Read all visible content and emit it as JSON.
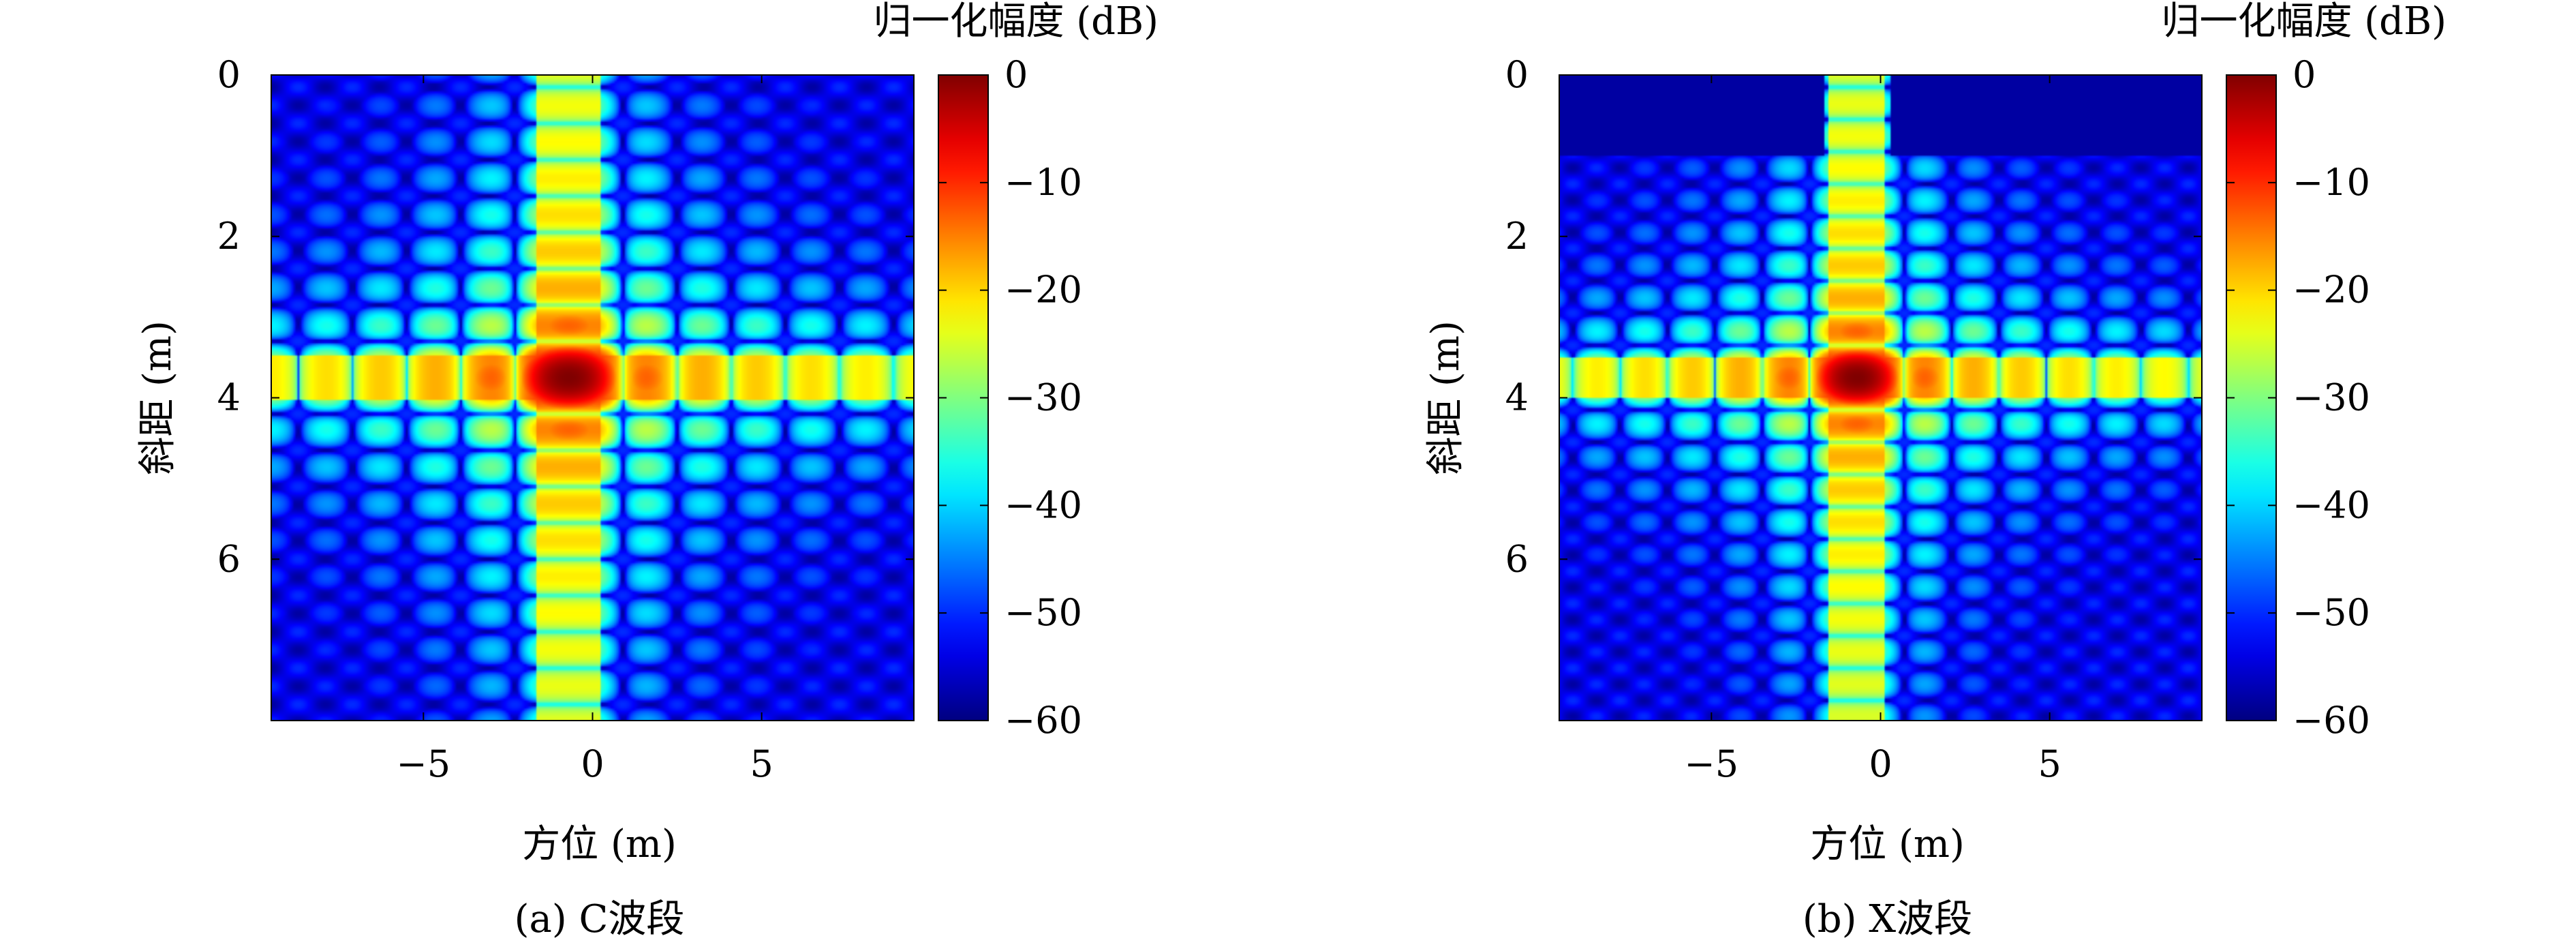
{
  "chart_data": [
    {
      "type": "heatmap",
      "panel_caption": "(a) C波段",
      "xlabel": "方位 (m)",
      "ylabel": "斜距 (m)",
      "colorbar_label": "归一化幅度 (dB)",
      "xlim": [
        -9.5,
        9.5
      ],
      "ylim": [
        0,
        8
      ],
      "y_reversed": true,
      "xticks": [
        -5,
        0,
        5
      ],
      "xtick_labels": [
        "−5",
        "0",
        "5"
      ],
      "yticks": [
        0,
        2,
        4,
        6
      ],
      "ytick_labels": [
        "0",
        "2",
        "4",
        "6"
      ],
      "colorbar_range": [
        -60,
        0
      ],
      "colorbar_ticks": [
        0,
        -10,
        -20,
        -30,
        -40,
        -50,
        -60
      ],
      "colorbar_tick_labels": [
        "0",
        "−10",
        "−20",
        "−30",
        "−40",
        "−50",
        "−60"
      ],
      "colormap": "jet",
      "peak": {
        "x": -0.7,
        "y": 3.75,
        "value_db": 0
      },
      "range_mainlobe_width_m": 0.45,
      "azimuth_mainlobe_width_m": 1.6,
      "range_sidelobe_floor_db": -36,
      "azimuth_sidelobe_floor_db": -36,
      "background_db": -50,
      "upper_region_suppressed": false
    },
    {
      "type": "heatmap",
      "panel_caption": "(b) X波段",
      "xlabel": "方位 (m)",
      "ylabel": "斜距 (m)",
      "colorbar_label": "归一化幅度 (dB)",
      "xlim": [
        -9.5,
        9.5
      ],
      "ylim": [
        0,
        8
      ],
      "y_reversed": true,
      "xticks": [
        -5,
        0,
        5
      ],
      "xtick_labels": [
        "−5",
        "0",
        "5"
      ],
      "yticks": [
        0,
        2,
        4,
        6
      ],
      "ytick_labels": [
        "0",
        "2",
        "4",
        "6"
      ],
      "colorbar_range": [
        -60,
        0
      ],
      "colorbar_ticks": [
        0,
        -10,
        -20,
        -30,
        -40,
        -50,
        -60
      ],
      "colorbar_tick_labels": [
        "0",
        "−10",
        "−20",
        "−30",
        "−40",
        "−50",
        "−60"
      ],
      "colormap": "jet",
      "peak": {
        "x": -0.7,
        "y": 3.75,
        "value_db": 0
      },
      "range_mainlobe_width_m": 0.4,
      "azimuth_mainlobe_width_m": 1.4,
      "range_sidelobe_floor_db": -36,
      "azimuth_sidelobe_floor_db": -36,
      "background_db": -50,
      "upper_region_suppressed": true
    }
  ]
}
